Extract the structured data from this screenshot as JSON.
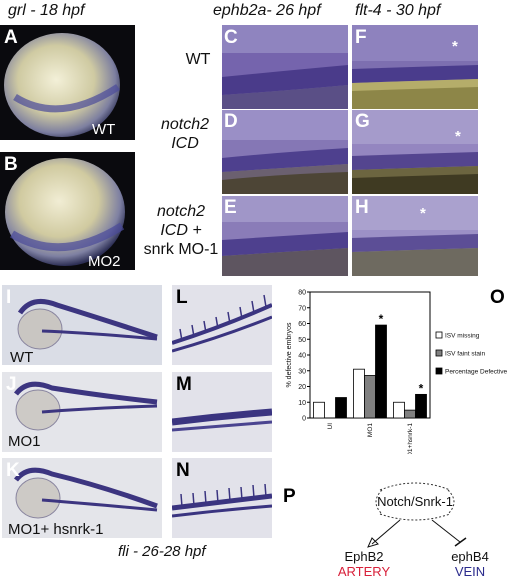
{
  "headers": {
    "grl": "grl - 18 hpf",
    "ephb2a": "ephb2a-  26 hpf",
    "flt4": "flt-4 - 30 hpf"
  },
  "row_labels": {
    "wt": "WT",
    "notch_line1": "notch2",
    "notch_line2": "ICD",
    "notch_mo_line1": "notch2",
    "notch_mo_line2": "ICD +",
    "notch_mo_line3": "snrk MO-1"
  },
  "panels": {
    "A": "A",
    "B": "B",
    "C": "C",
    "D": "D",
    "E": "E",
    "F": "F",
    "G": "G",
    "H": "H",
    "I": "I",
    "J": "J",
    "K": "K",
    "L": "L",
    "M": "M",
    "N": "N",
    "O": "O",
    "P": "P"
  },
  "inset_labels": {
    "A": "WT",
    "B": "MO2",
    "I": "WT",
    "J": "MO1",
    "K": "MO1+ hsnrk-1"
  },
  "stars": {
    "F": "*",
    "G": "*",
    "H": "*"
  },
  "fli_caption": "fli - 26-28 hpf",
  "chart_data": {
    "type": "bar",
    "ylabel": "% defective embryos",
    "ylim": [
      0,
      80
    ],
    "yticks": [
      0,
      10,
      20,
      30,
      40,
      50,
      60,
      70,
      80
    ],
    "categories": [
      "UI",
      "MO1",
      "MO1+hsnrk-1"
    ],
    "series": [
      {
        "name": "ISV missing",
        "color": "#ffffff",
        "values": [
          10,
          31,
          10
        ]
      },
      {
        "name": "ISV faint stain",
        "color": "#808080",
        "values": [
          0,
          27,
          5
        ]
      },
      {
        "name": "Percentage Defective",
        "color": "#000000",
        "values": [
          13,
          59,
          15
        ]
      }
    ],
    "annotations": [
      {
        "category": "MO1",
        "series": "Percentage Defective",
        "text": "*"
      },
      {
        "category": "MO1+hsnrk-1",
        "series": "Percentage Defective",
        "text": "*"
      }
    ],
    "legend": "right"
  },
  "pathway": {
    "center": "Notch/Snrk-1",
    "left_gene": "EphB2",
    "right_gene": "ephB4",
    "left_fate": "ARTERY",
    "right_fate": "VEIN",
    "colors": {
      "artery": "#d8203a",
      "vein": "#2a2a8c"
    }
  }
}
